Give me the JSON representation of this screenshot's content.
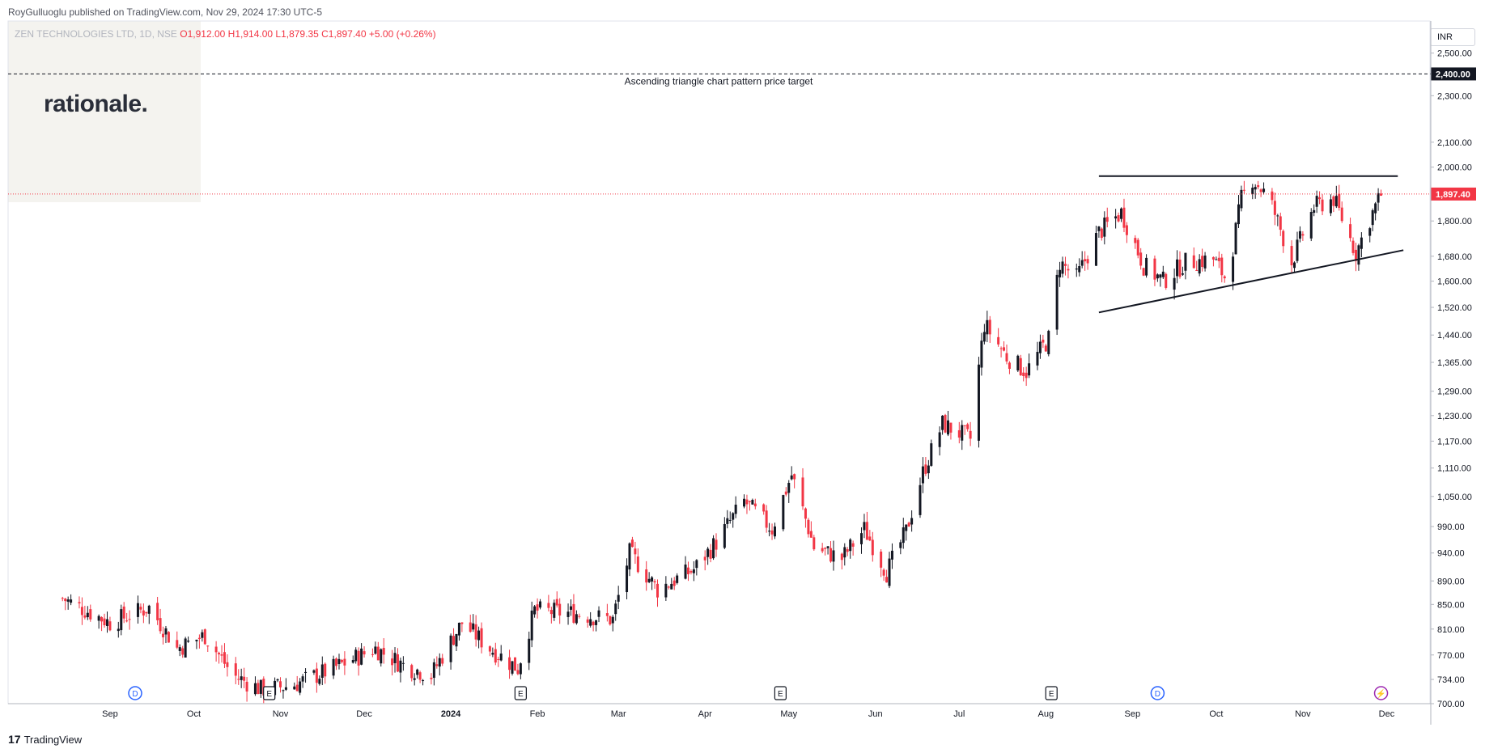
{
  "header": {
    "published_by": "RoyGulluoglu published on TradingView.com, Nov 29, 2024 17:30 UTC-5"
  },
  "logo": {
    "text": "rationale."
  },
  "legend": {
    "symbol": "ZEN TECHNOLOGIES LTD, 1D, NSE",
    "open": "O1,912.00",
    "high": "H1,914.00",
    "low": "L1,879.35",
    "close": "C1,897.40",
    "change": "+5.00 (+0.26%)"
  },
  "currency_button": "INR",
  "footer": {
    "brand_mark": "17",
    "brand": "TradingView"
  },
  "colors": {
    "up": "#131722",
    "down": "#f23645",
    "target_line": "#131722",
    "price_line": "#f23645"
  },
  "chart_data": {
    "type": "candlestick",
    "title": "ZEN TECHNOLOGIES LTD, 1D, NSE",
    "x_ticks": [
      "Sep",
      "Oct",
      "Nov",
      "Dec",
      "2024",
      "Feb",
      "Mar",
      "Apr",
      "May",
      "Jun",
      "Jul",
      "Aug",
      "Sep",
      "Oct",
      "Nov",
      "Dec"
    ],
    "y_ticks": [
      "2,500.00",
      "2,300.00",
      "2,100.00",
      "2,000.00",
      "1,800.00",
      "1,680.00",
      "1,600.00",
      "1,520.00",
      "1,440.00",
      "1,365.00",
      "1,290.00",
      "1,230.00",
      "1,170.00",
      "1,110.00",
      "1,050.00",
      "990.00",
      "940.00",
      "890.00",
      "850.00",
      "810.00",
      "770.00",
      "734.00",
      "700.00"
    ],
    "scale": "log",
    "ylim": [
      700,
      2620
    ],
    "last_price": {
      "value": 1897.4,
      "label": "1,897.40"
    },
    "target": {
      "value": 2400,
      "label": "2,400.00",
      "annotation": "Ascending triangle chart pattern price target"
    },
    "trendlines": {
      "resistance": {
        "start": [
          "2024-08-20",
          1965
        ],
        "end": [
          "2024-12-05",
          1965
        ]
      },
      "support": {
        "start": [
          "2024-08-20",
          1505
        ],
        "end": [
          "2024-12-07",
          1700
        ]
      }
    },
    "event_markers": [
      {
        "label": "D",
        "month": "Sep 2023"
      },
      {
        "label": "E",
        "month": "Oct 2023"
      },
      {
        "label": "E",
        "month": "Jan 2024"
      },
      {
        "label": "E",
        "month": "May 2024"
      },
      {
        "label": "E",
        "month": "Aug 2024"
      },
      {
        "label": "D",
        "month": "Sep 2024"
      },
      {
        "label": "⚡",
        "month": "Nov 2024"
      }
    ],
    "close_path": [
      [
        "2023-08-15",
        860
      ],
      [
        "2023-09-01",
        820
      ],
      [
        "2023-09-15",
        845
      ],
      [
        "2023-09-25",
        780
      ],
      [
        "2023-10-05",
        800
      ],
      [
        "2023-10-15",
        740
      ],
      [
        "2023-10-25",
        720
      ],
      [
        "2023-11-05",
        725
      ],
      [
        "2023-11-20",
        750
      ],
      [
        "2023-12-05",
        780
      ],
      [
        "2023-12-15",
        755
      ],
      [
        "2023-12-25",
        740
      ],
      [
        "2024-01-05",
        820
      ],
      [
        "2024-01-15",
        780
      ],
      [
        "2024-01-25",
        750
      ],
      [
        "2024-01-31",
        840
      ],
      [
        "2024-02-15",
        835
      ],
      [
        "2024-02-28",
        825
      ],
      [
        "2024-03-05",
        940
      ],
      [
        "2024-03-15",
        875
      ],
      [
        "2024-03-28",
        910
      ],
      [
        "2024-04-05",
        960
      ],
      [
        "2024-04-15",
        1040
      ],
      [
        "2024-04-25",
        985
      ],
      [
        "2024-05-02",
        1095
      ],
      [
        "2024-05-10",
        950
      ],
      [
        "2024-05-20",
        930
      ],
      [
        "2024-05-28",
        985
      ],
      [
        "2024-06-05",
        905
      ],
      [
        "2024-06-12",
        980
      ],
      [
        "2024-06-18",
        1100
      ],
      [
        "2024-06-25",
        1210
      ],
      [
        "2024-07-05",
        1175
      ],
      [
        "2024-07-10",
        1470
      ],
      [
        "2024-07-18",
        1380
      ],
      [
        "2024-07-25",
        1340
      ],
      [
        "2024-08-02",
        1430
      ],
      [
        "2024-08-06",
        1660
      ],
      [
        "2024-08-12",
        1610
      ],
      [
        "2024-08-20",
        1760
      ],
      [
        "2024-08-28",
        1830
      ],
      [
        "2024-09-05",
        1650
      ],
      [
        "2024-09-12",
        1600
      ],
      [
        "2024-09-20",
        1660
      ],
      [
        "2024-09-30",
        1670
      ],
      [
        "2024-10-05",
        1600
      ],
      [
        "2024-10-10",
        1880
      ],
      [
        "2024-10-14",
        1955
      ],
      [
        "2024-10-20",
        1880
      ],
      [
        "2024-10-28",
        1660
      ],
      [
        "2024-11-05",
        1850
      ],
      [
        "2024-11-12",
        1880
      ],
      [
        "2024-11-20",
        1690
      ],
      [
        "2024-11-26",
        1830
      ],
      [
        "2024-11-29",
        1897.4
      ]
    ]
  }
}
